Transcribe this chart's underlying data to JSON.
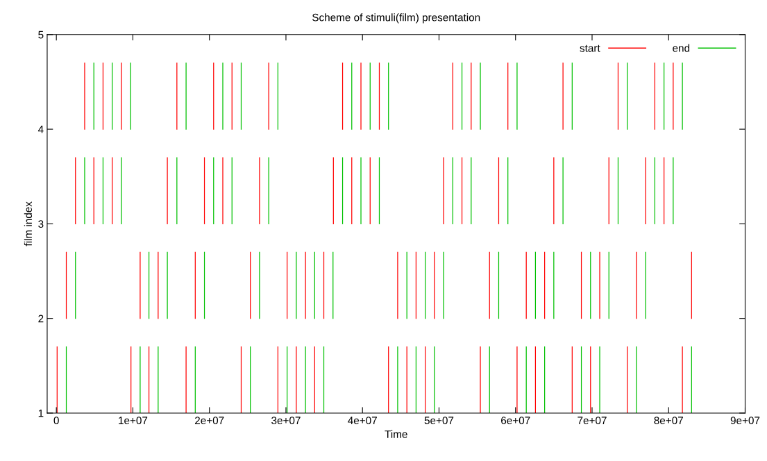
{
  "chart_data": {
    "type": "bar",
    "title": "Scheme of stimuli(film) presentation",
    "xlabel": "Time",
    "ylabel": "film index",
    "series": [
      {
        "name": "start",
        "color": "#ff0000",
        "x": [
          100000,
          1300000,
          2500000,
          3700000,
          4900000,
          6100000,
          7300000,
          8500000,
          9750000,
          10950000,
          12100000,
          13300000,
          14500000,
          15750000,
          16950000,
          18150000,
          19350000,
          20550000,
          21750000,
          22950000,
          24150000,
          25350000,
          26550000,
          27750000,
          28950000,
          30150000,
          31350000,
          32550000,
          33750000,
          34950000,
          36200000,
          37400000,
          38600000,
          39800000,
          41000000,
          42200000,
          43400000,
          44600000,
          45800000,
          47000000,
          48200000,
          49400000,
          50600000,
          51800000,
          53000000,
          54200000,
          55400000,
          56600000,
          57800000,
          59000000,
          60200000,
          61400000,
          62600000,
          63800000,
          65000000,
          66200000,
          67400000,
          68600000,
          69800000,
          71000000,
          72200000,
          73400000,
          74600000,
          75800000,
          77000000,
          78200000,
          79400000,
          80600000,
          81800000,
          83000000
        ],
        "base": [
          1,
          2,
          3,
          4,
          3,
          4,
          3,
          4,
          1,
          2,
          1,
          2,
          3,
          4,
          1,
          2,
          3,
          4,
          3,
          4,
          1,
          2,
          3,
          4,
          1,
          2,
          1,
          2,
          1,
          2,
          3,
          4,
          3,
          4,
          3,
          4,
          1,
          2,
          1,
          2,
          1,
          2,
          3,
          4,
          3,
          4,
          1,
          2,
          3,
          4,
          1,
          2,
          1,
          2,
          3,
          4,
          1,
          2,
          1,
          2,
          3,
          4,
          1,
          2,
          3,
          4,
          3,
          4,
          1,
          2
        ],
        "values": [
          0.7,
          0.7,
          0.7,
          0.7,
          0.7,
          0.7,
          0.7,
          0.7,
          0.7,
          0.7,
          0.7,
          0.7,
          0.7,
          0.7,
          0.7,
          0.7,
          0.7,
          0.7,
          0.7,
          0.7,
          0.7,
          0.7,
          0.7,
          0.7,
          0.7,
          0.7,
          0.7,
          0.7,
          0.7,
          0.7,
          0.7,
          0.7,
          0.7,
          0.7,
          0.7,
          0.7,
          0.7,
          0.7,
          0.7,
          0.7,
          0.7,
          0.7,
          0.7,
          0.7,
          0.7,
          0.7,
          0.7,
          0.7,
          0.7,
          0.7,
          0.7,
          0.7,
          0.7,
          0.7,
          0.7,
          0.7,
          0.7,
          0.7,
          0.7,
          0.7,
          0.7,
          0.7,
          0.7,
          0.7,
          0.7,
          0.7,
          0.7,
          0.7,
          0.7,
          0.7
        ]
      },
      {
        "name": "end",
        "color": "#00c000",
        "x": [
          1300000,
          2500000,
          3700000,
          4900000,
          6100000,
          7300000,
          8500000,
          9700000,
          10950000,
          12100000,
          13300000,
          14500000,
          15750000,
          16950000,
          18150000,
          19350000,
          20550000,
          21750000,
          22950000,
          24150000,
          25350000,
          26550000,
          27750000,
          28950000,
          30150000,
          31350000,
          32550000,
          33750000,
          34950000,
          36150000,
          37400000,
          38600000,
          39800000,
          41000000,
          42200000,
          43400000,
          44600000,
          45800000,
          47000000,
          48200000,
          49400000,
          50600000,
          51800000,
          53000000,
          54200000,
          55400000,
          56600000,
          57800000,
          59000000,
          60200000,
          61400000,
          62600000,
          63800000,
          65000000,
          66200000,
          67400000,
          68600000,
          69800000,
          71000000,
          72200000,
          73400000,
          74600000,
          75800000,
          77000000,
          78200000,
          79400000,
          80600000,
          81800000,
          83000000
        ],
        "base": [
          1,
          2,
          3,
          4,
          3,
          4,
          3,
          4,
          1,
          2,
          1,
          2,
          3,
          4,
          1,
          2,
          3,
          4,
          3,
          4,
          1,
          2,
          3,
          4,
          1,
          2,
          1,
          2,
          1,
          2,
          3,
          4,
          3,
          4,
          3,
          4,
          1,
          2,
          1,
          2,
          1,
          2,
          3,
          4,
          3,
          4,
          1,
          2,
          3,
          4,
          1,
          2,
          1,
          2,
          3,
          4,
          1,
          2,
          1,
          2,
          3,
          4,
          1,
          2,
          3,
          4,
          3,
          4,
          1
        ],
        "values": [
          0.7,
          0.7,
          0.7,
          0.7,
          0.7,
          0.7,
          0.7,
          0.7,
          0.7,
          0.7,
          0.7,
          0.7,
          0.7,
          0.7,
          0.7,
          0.7,
          0.7,
          0.7,
          0.7,
          0.7,
          0.7,
          0.7,
          0.7,
          0.7,
          0.7,
          0.7,
          0.7,
          0.7,
          0.7,
          0.7,
          0.7,
          0.7,
          0.7,
          0.7,
          0.7,
          0.7,
          0.7,
          0.7,
          0.7,
          0.7,
          0.7,
          0.7,
          0.7,
          0.7,
          0.7,
          0.7,
          0.7,
          0.7,
          0.7,
          0.7,
          0.7,
          0.7,
          0.7,
          0.7,
          0.7,
          0.7,
          0.7,
          0.7,
          0.7,
          0.7,
          0.7,
          0.7,
          0.7,
          0.7,
          0.7,
          0.7,
          0.7,
          0.7,
          0.7
        ]
      }
    ],
    "xlim": [
      -1200000,
      90000000
    ],
    "xticks": [
      0,
      {
        "value": 10000000,
        "label": "1e+07"
      },
      {
        "value": 20000000,
        "label": "2e+07"
      },
      {
        "value": 30000000,
        "label": "3e+07"
      },
      {
        "value": 40000000,
        "label": "4e+07"
      },
      {
        "value": 50000000,
        "label": "5e+07"
      },
      {
        "value": 60000000,
        "label": "6e+07"
      },
      {
        "value": 70000000,
        "label": "7e+07"
      },
      {
        "value": 80000000,
        "label": "8e+07"
      },
      {
        "value": 90000000,
        "label": "9e+07"
      }
    ],
    "ylim": [
      1,
      5
    ],
    "yticks": [
      1,
      2,
      3,
      4,
      5
    ],
    "legend": "top right"
  }
}
